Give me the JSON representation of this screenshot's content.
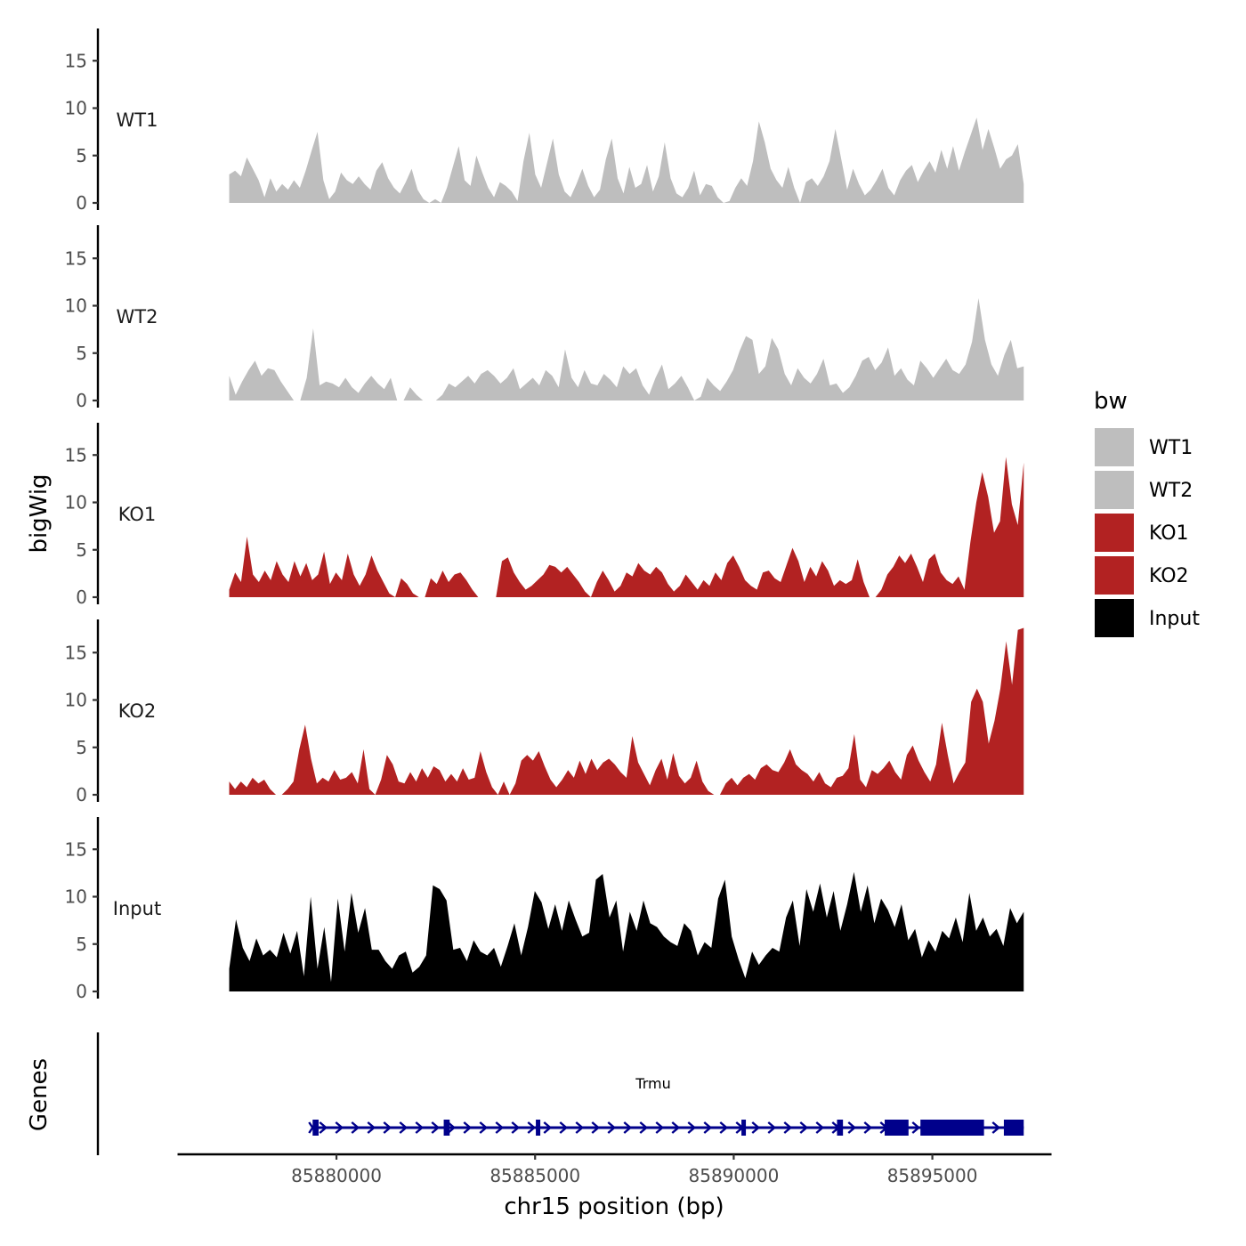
{
  "chart_data": {
    "type": "area",
    "title": "",
    "chromosome": "chr15",
    "ylabel": "bigWig",
    "xlabel": "chr15 position (bp)",
    "genes_label": "Genes",
    "ylim": [
      0,
      18
    ],
    "yticks": [
      0,
      5,
      10,
      15
    ],
    "xlim": [
      85876000,
      85898000
    ],
    "xticks": [
      85880000,
      85885000,
      85890000,
      85895000
    ],
    "xtick_labels": [
      "85880000",
      "85885000",
      "85890000",
      "85895000"
    ],
    "data_range": [
      85877300,
      85897300
    ],
    "legend": {
      "title": "bw",
      "position": "right",
      "entries": [
        {
          "label": "WT1",
          "color": "#bebebe"
        },
        {
          "label": "WT2",
          "color": "#bebebe"
        },
        {
          "label": "KO1",
          "color": "#b22222"
        },
        {
          "label": "KO2",
          "color": "#b22222"
        },
        {
          "label": "Input",
          "color": "#000000"
        }
      ]
    },
    "series": [
      {
        "name": "WT1",
        "color": "#bebebe",
        "values": [
          3,
          3.4,
          2.8,
          4.8,
          3.6,
          2.4,
          0.6,
          2.6,
          1.2,
          2,
          1.4,
          2.4,
          1.6,
          3.4,
          5.5,
          7.5,
          2.4,
          0.4,
          1.2,
          3.2,
          2.4,
          2,
          2.8,
          2,
          1.4,
          3.4,
          4.3,
          2.6,
          1.6,
          1,
          2.2,
          3.6,
          1.4,
          0.4,
          0,
          0.4,
          0,
          1.6,
          3.8,
          6,
          2.4,
          1.8,
          5,
          3.2,
          1.6,
          0.6,
          2.2,
          1.8,
          1.2,
          0.2,
          4.4,
          7.4,
          3,
          1.6,
          4.2,
          6.8,
          3,
          1.2,
          0.6,
          2,
          3.6,
          1.8,
          0.6,
          1.4,
          4.6,
          6.8,
          2.6,
          1,
          3.8,
          1.6,
          2,
          4,
          1.2,
          2.8,
          6.4,
          2.6,
          1,
          0.6,
          1.6,
          3.4,
          0.8,
          2,
          1.8,
          0.6,
          0,
          0.2,
          1.6,
          2.6,
          1.8,
          4.4,
          8.6,
          6.4,
          3.6,
          2.4,
          1.6,
          3.8,
          1.6,
          0,
          2.2,
          2.6,
          1.8,
          2.8,
          4.4,
          7.8,
          4.6,
          1.4,
          3.6,
          2,
          0.8,
          1.4,
          2.4,
          3.6,
          1.6,
          0.8,
          2.4,
          3.4,
          4,
          2.2,
          3.4,
          4.4,
          3.2,
          5.6,
          3.6,
          6,
          3.4,
          5.4,
          7.2,
          9,
          5.6,
          7.8,
          5.8,
          3.6,
          4.6,
          5,
          6.2,
          2
        ]
      },
      {
        "name": "WT2",
        "color": "#bebebe",
        "values": [
          2.6,
          0.6,
          2,
          3.2,
          4.2,
          2.6,
          3.4,
          3.2,
          2,
          1,
          0,
          0,
          2.4,
          7.6,
          1.6,
          2,
          1.8,
          1.4,
          2.4,
          1.4,
          0.8,
          1.8,
          2.6,
          1.8,
          1.2,
          2.4,
          0,
          0,
          1.4,
          0.6,
          0,
          0,
          0,
          0.6,
          1.8,
          1.4,
          2,
          2.6,
          1.8,
          2.8,
          3.2,
          2.6,
          1.8,
          2.4,
          3.4,
          1.2,
          1.8,
          2.4,
          1.6,
          3.2,
          2.6,
          1.4,
          5.4,
          2.4,
          1.4,
          3.2,
          1.8,
          1.6,
          2.8,
          2.2,
          1.4,
          3.6,
          2.8,
          3.4,
          1.6,
          0.6,
          2.4,
          3.8,
          1.2,
          1.8,
          2.6,
          1.4,
          0,
          0.4,
          2.4,
          1.6,
          1,
          2,
          3.2,
          5.2,
          6.8,
          6.4,
          2.8,
          3.6,
          6.6,
          5.4,
          2.8,
          1.6,
          3.4,
          2.4,
          1.8,
          2.8,
          4.4,
          1.6,
          1.8,
          0.8,
          1.4,
          2.6,
          4.2,
          4.6,
          3.2,
          4,
          5.6,
          2.6,
          3.4,
          2.2,
          1.6,
          4.2,
          3.4,
          2.4,
          3.4,
          4.4,
          3.2,
          2.8,
          3.8,
          6.2,
          10.8,
          6.4,
          3.8,
          2.6,
          4.8,
          6.4,
          3.4,
          3.6
        ]
      },
      {
        "name": "KO1",
        "color": "#b22222",
        "values": [
          0.8,
          2.6,
          1.6,
          6.4,
          2.4,
          1.6,
          2.8,
          1.8,
          3.8,
          2.4,
          1.6,
          3.8,
          2.2,
          3.6,
          1.8,
          2.4,
          4.8,
          1.4,
          2.6,
          1.8,
          4.6,
          2.4,
          1.2,
          2.4,
          4.4,
          2.8,
          1.6,
          0.4,
          0,
          2,
          1.4,
          0.4,
          0,
          0,
          2,
          1.4,
          2.8,
          1.6,
          2.4,
          2.6,
          1.8,
          0.8,
          0,
          0,
          0,
          0,
          3.8,
          4.2,
          2.6,
          1.6,
          0.8,
          1.2,
          1.8,
          2.4,
          3.4,
          3.2,
          2.6,
          3.2,
          2.4,
          1.6,
          0.6,
          0,
          1.6,
          2.8,
          1.8,
          0.6,
          1.2,
          2.6,
          2.2,
          3.6,
          2.8,
          2.4,
          3.2,
          2.6,
          1.4,
          0.6,
          1.2,
          2.4,
          1.6,
          0.8,
          1.8,
          1.2,
          2.6,
          1.8,
          3.6,
          4.4,
          3.2,
          1.8,
          1.2,
          0.8,
          2.6,
          2.8,
          2,
          1.6,
          3.4,
          5.2,
          3.8,
          1.6,
          3.2,
          2.2,
          3.8,
          2.8,
          1.2,
          1.8,
          1.4,
          1.8,
          4,
          1.6,
          0,
          0,
          0.8,
          2.4,
          3.2,
          4.4,
          3.6,
          4.6,
          3.2,
          1.6,
          4,
          4.6,
          2.6,
          1.8,
          1.4,
          2.2,
          0.8,
          5.8,
          10,
          13.2,
          10.6,
          6.8,
          8,
          14.8,
          9.8,
          7.6,
          14.2
        ]
      },
      {
        "name": "KO2",
        "color": "#b22222",
        "values": [
          1.4,
          0.6,
          1.4,
          0.8,
          1.8,
          1.2,
          1.6,
          0.6,
          0,
          0,
          0.6,
          1.4,
          4.8,
          7.4,
          3.8,
          1.2,
          1.8,
          1.4,
          2.6,
          1.6,
          1.8,
          2.4,
          1.2,
          4.8,
          0.6,
          0,
          1.6,
          4.2,
          3.2,
          1.4,
          1.2,
          2.4,
          1.4,
          2.8,
          1.8,
          3,
          2.6,
          1.4,
          2.2,
          1.4,
          2.8,
          1.6,
          1.8,
          4.6,
          2.4,
          0.8,
          0,
          1.4,
          0,
          1.2,
          3.6,
          4.2,
          3.6,
          4.6,
          3,
          1.6,
          0.8,
          1.6,
          2.6,
          1.8,
          3.6,
          2.2,
          3.8,
          2.6,
          3.4,
          3.8,
          3.2,
          2.4,
          1.8,
          6.2,
          3.4,
          2.2,
          1,
          2.6,
          3.8,
          1.6,
          4.4,
          2,
          1.2,
          1.8,
          3.6,
          1.4,
          0.4,
          0,
          0,
          1.2,
          1.8,
          1,
          1.8,
          2.2,
          1.6,
          2.8,
          3.2,
          2.6,
          2.4,
          3.4,
          4.8,
          3.2,
          2.6,
          2.2,
          1.4,
          2.4,
          1.2,
          0.8,
          1.8,
          2,
          2.8,
          6.4,
          1.6,
          0.8,
          2.6,
          2.2,
          2.8,
          3.6,
          2.4,
          1.6,
          4.2,
          5.2,
          3.6,
          2.4,
          1.4,
          3.2,
          7.6,
          4.2,
          1.2,
          2.4,
          3.4,
          9.8,
          11.2,
          9.8,
          5.4,
          7.8,
          11.2,
          16.2,
          11.6,
          17.4,
          17.6
        ]
      },
      {
        "name": "Input",
        "color": "#000000",
        "values": [
          2.4,
          7.6,
          4.6,
          3.2,
          5.6,
          3.8,
          4.4,
          3.6,
          6.2,
          4,
          6.4,
          1.6,
          10,
          2.4,
          6.8,
          1,
          9.8,
          4.2,
          10.4,
          6.2,
          8.8,
          4.4,
          4.4,
          3.2,
          2.4,
          3.8,
          4.2,
          2,
          2.6,
          3.8,
          11.2,
          10.8,
          9.6,
          4.4,
          4.6,
          3.2,
          5.4,
          4.2,
          3.8,
          4.6,
          2.6,
          4.8,
          7.2,
          3.8,
          6.8,
          10.6,
          9.4,
          6.6,
          9.2,
          6.4,
          9.6,
          7.6,
          5.8,
          6.2,
          11.8,
          12.4,
          7.8,
          9.6,
          4.2,
          8.4,
          6.4,
          9.6,
          7.2,
          6.8,
          5.8,
          5.2,
          4.8,
          7.2,
          6.4,
          3.8,
          5.2,
          4.6,
          9.8,
          11.8,
          5.8,
          3.4,
          1.4,
          4.2,
          2.8,
          3.8,
          4.6,
          4.2,
          7.8,
          9.6,
          4.8,
          10.8,
          8.4,
          11.4,
          7.8,
          10.6,
          6.4,
          9.2,
          12.6,
          8.4,
          11.2,
          7.2,
          9.8,
          8.6,
          6.8,
          9.2,
          5.4,
          6.6,
          3.6,
          5.4,
          4.2,
          6.4,
          5.6,
          7.8,
          5.2,
          10.4,
          6.4,
          7.8,
          5.8,
          6.6,
          4.8,
          8.8,
          7.2,
          8.4
        ]
      }
    ],
    "genes": [
      {
        "name": "Trmu",
        "start": 85879400,
        "end": 85897300,
        "strand": "+",
        "color": "#00008b",
        "exons": [
          [
            85879400,
            85879550
          ],
          [
            85882700,
            85882850
          ],
          [
            85885050,
            85885100
          ],
          [
            85890200,
            85890300
          ],
          [
            85892600,
            85892750
          ],
          [
            85893800,
            85894400
          ],
          [
            85894700,
            85896300
          ],
          [
            85896800,
            85897300
          ]
        ]
      }
    ]
  }
}
